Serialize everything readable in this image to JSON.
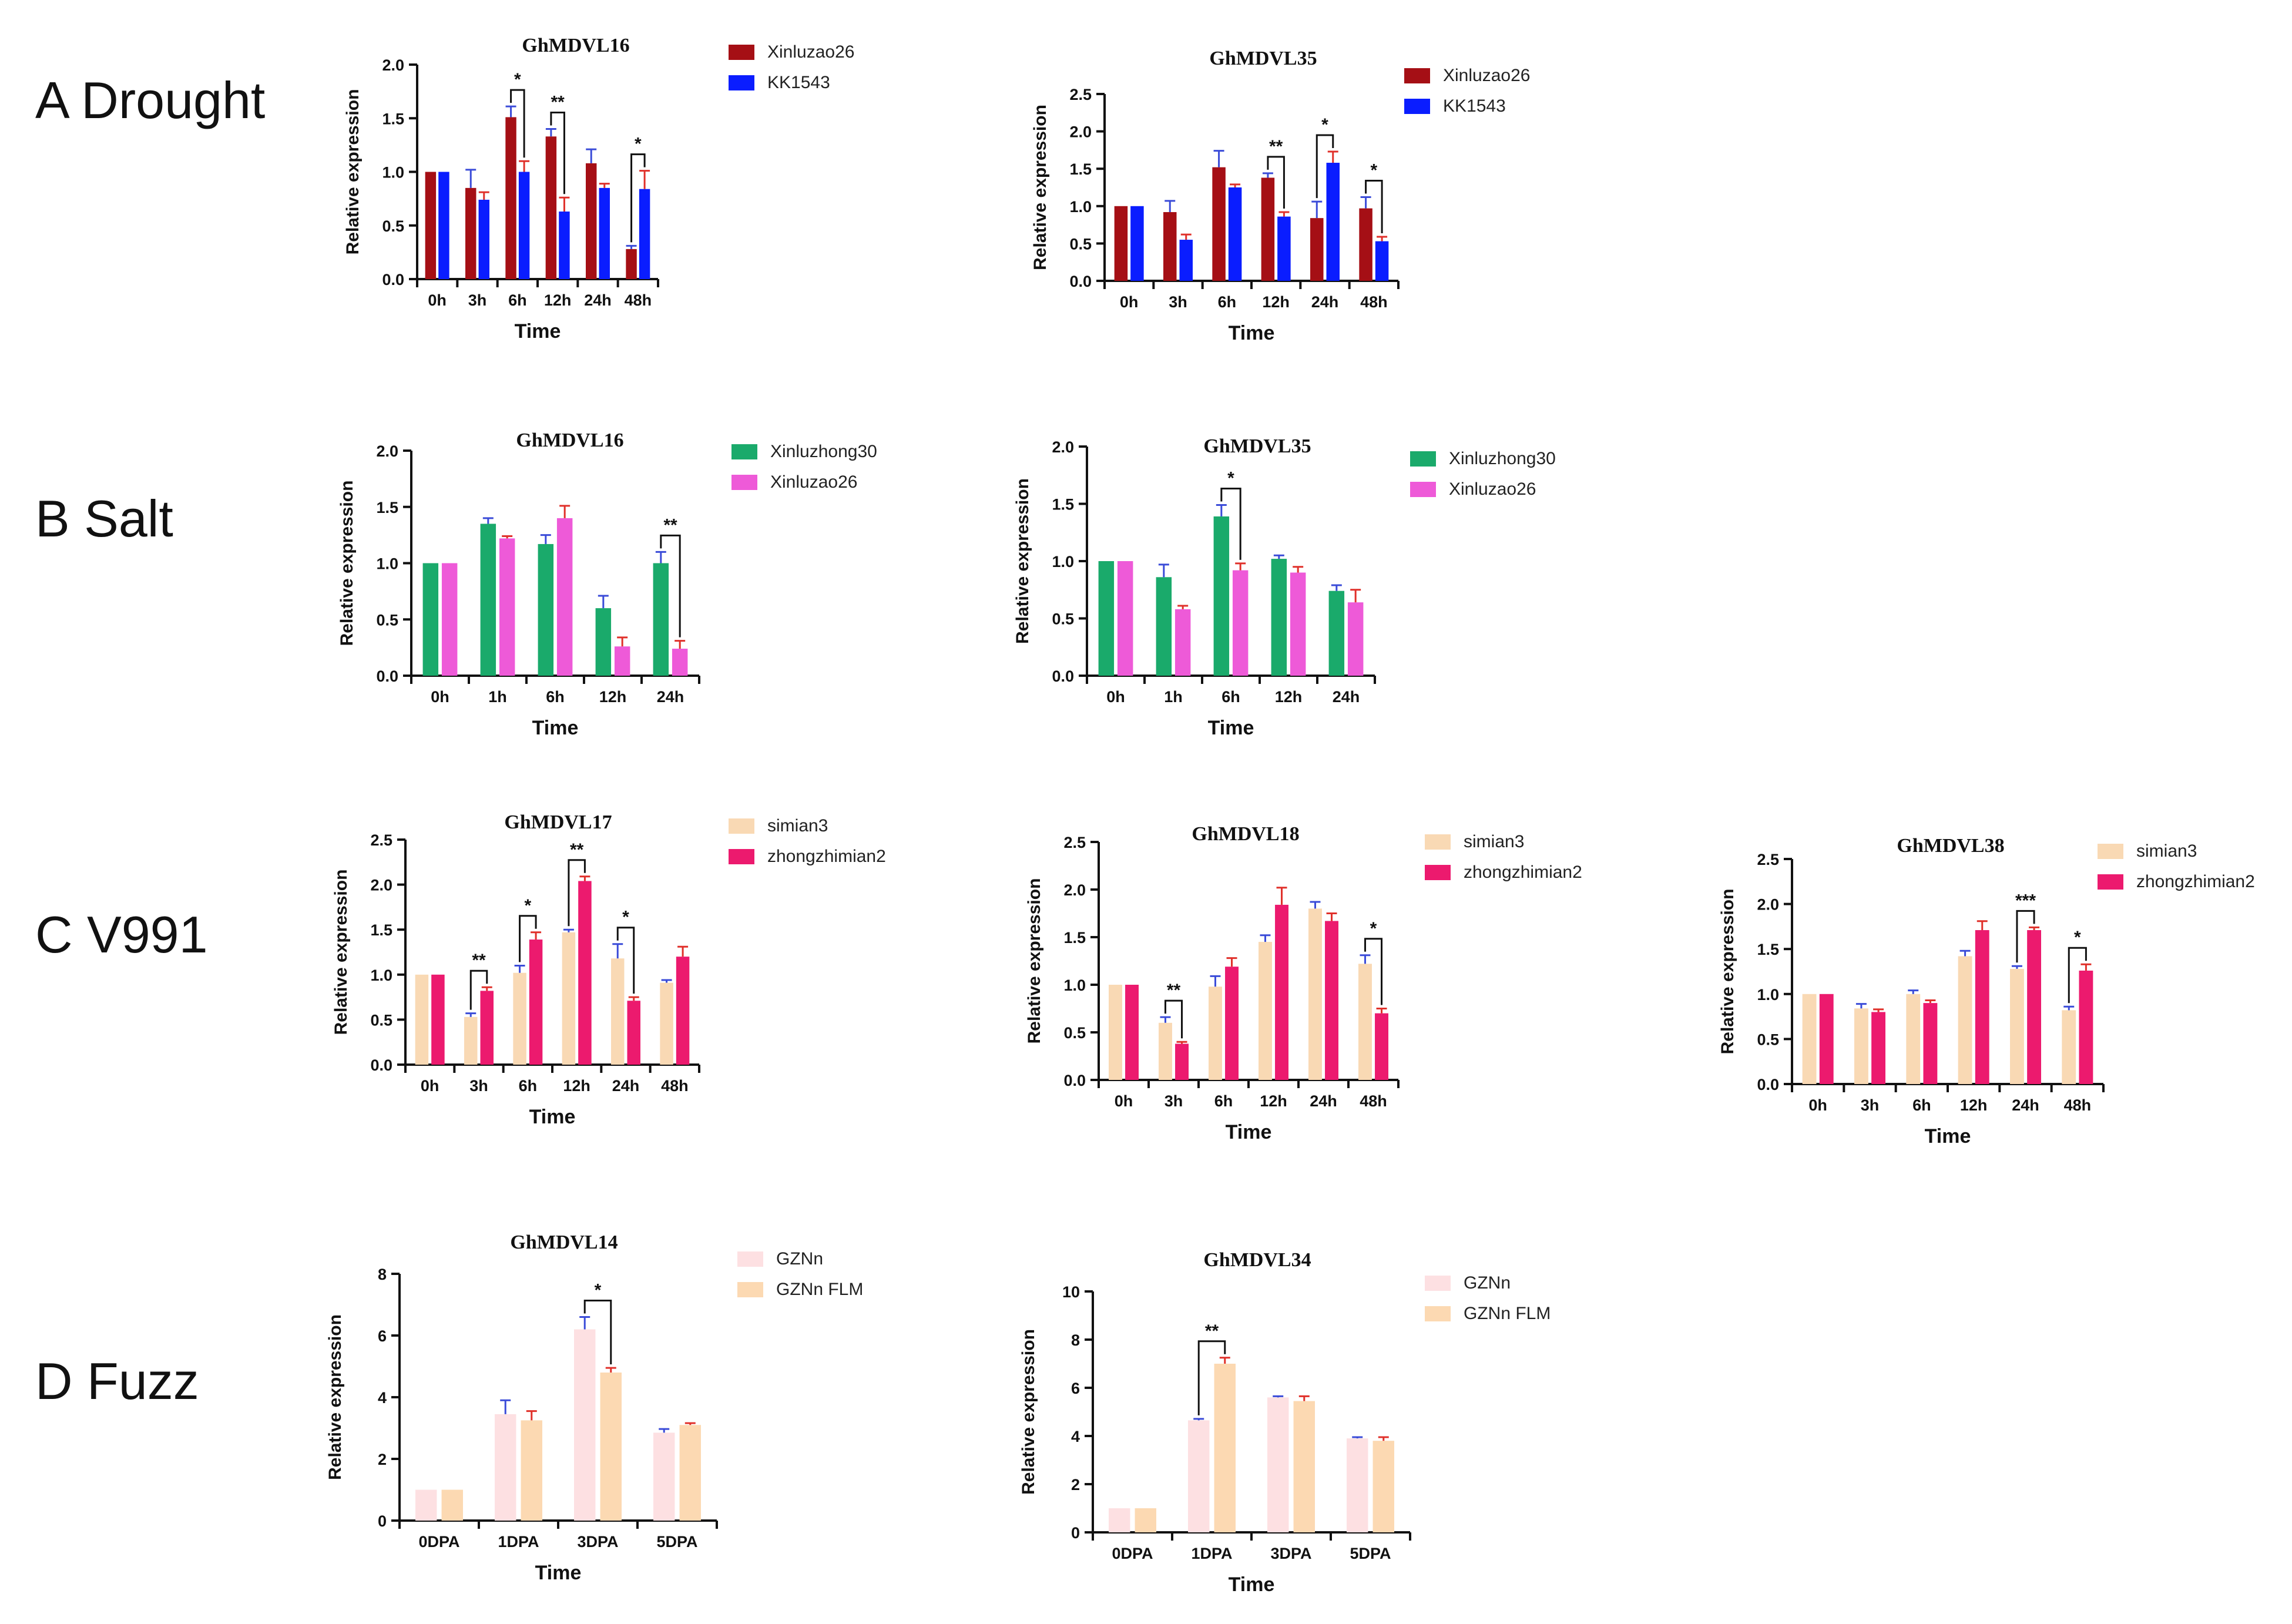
{
  "row_labels": [
    "A  Drought",
    "B  Salt",
    "C  V991",
    "D  Fuzz"
  ],
  "chart_data": [
    {
      "id": "A1",
      "type": "bar",
      "title": "GhMDVL16",
      "xlabel": "Time",
      "ylabel": "Relative expression",
      "ylim": [
        0,
        2.0
      ],
      "yticks": [
        "0.0",
        "0.5",
        "1.0",
        "1.5",
        "2.0"
      ],
      "categories": [
        "0h",
        "3h",
        "6h",
        "12h",
        "24h",
        "48h"
      ],
      "series": [
        {
          "name": "Xinluzao26",
          "color": "#a50f15",
          "values": [
            1.0,
            0.85,
            1.51,
            1.33,
            1.08,
            0.28
          ],
          "errors": [
            0,
            0.17,
            0.1,
            0.07,
            0.13,
            0.03
          ],
          "error_color": "#3a4bd8"
        },
        {
          "name": "KK1543",
          "color": "#0a1dff",
          "values": [
            1.0,
            0.74,
            1.0,
            0.63,
            0.85,
            0.84
          ],
          "errors": [
            0,
            0.07,
            0.1,
            0.13,
            0.04,
            0.17
          ],
          "error_color": "#e0302a"
        }
      ],
      "annotations": [
        {
          "index": 2,
          "label": "*"
        },
        {
          "index": 3,
          "label": "**"
        },
        {
          "index": 5,
          "label": "*"
        }
      ]
    },
    {
      "id": "A2",
      "type": "bar",
      "title": "GhMDVL35",
      "xlabel": "Time",
      "ylabel": "Relative expression",
      "ylim": [
        0,
        2.5
      ],
      "yticks": [
        "0.0",
        "0.5",
        "1.0",
        "1.5",
        "2.0",
        "2.5"
      ],
      "categories": [
        "0h",
        "3h",
        "6h",
        "12h",
        "24h",
        "48h"
      ],
      "series": [
        {
          "name": "Xinluzao26",
          "color": "#a50f15",
          "values": [
            1.0,
            0.92,
            1.52,
            1.38,
            0.84,
            0.97
          ],
          "errors": [
            0,
            0.15,
            0.22,
            0.06,
            0.22,
            0.15
          ],
          "error_color": "#3a4bd8"
        },
        {
          "name": "KK1543",
          "color": "#0a1dff",
          "values": [
            1.0,
            0.55,
            1.25,
            0.86,
            1.58,
            0.53
          ],
          "errors": [
            0,
            0.07,
            0.04,
            0.06,
            0.15,
            0.06
          ],
          "error_color": "#e0302a"
        }
      ],
      "annotations": [
        {
          "index": 3,
          "label": "**"
        },
        {
          "index": 4,
          "label": "*"
        },
        {
          "index": 5,
          "label": "*"
        }
      ]
    },
    {
      "id": "B1",
      "type": "bar",
      "title": "GhMDVL16",
      "xlabel": "Time",
      "ylabel": "Relative expression",
      "ylim": [
        0,
        2.0
      ],
      "yticks": [
        "0.0",
        "0.5",
        "1.0",
        "1.5",
        "2.0"
      ],
      "categories": [
        "0h",
        "1h",
        "6h",
        "12h",
        "24h"
      ],
      "series": [
        {
          "name": "Xinluzhong30",
          "color": "#1aaa6b",
          "values": [
            1.0,
            1.35,
            1.17,
            0.6,
            1.0
          ],
          "errors": [
            0,
            0.05,
            0.08,
            0.11,
            0.1
          ],
          "error_color": "#3a4bd8"
        },
        {
          "name": "Xinluzao26",
          "color": "#ee5ad8",
          "values": [
            1.0,
            1.22,
            1.4,
            0.26,
            0.24
          ],
          "errors": [
            0,
            0.02,
            0.11,
            0.08,
            0.07
          ],
          "error_color": "#e0302a"
        }
      ],
      "annotations": [
        {
          "index": 4,
          "label": "**"
        }
      ]
    },
    {
      "id": "B2",
      "type": "bar",
      "title": "GhMDVL35",
      "xlabel": "Time",
      "ylabel": "Relative expression",
      "ylim": [
        0,
        2.0
      ],
      "yticks": [
        "0.0",
        "0.5",
        "1.0",
        "1.5",
        "2.0"
      ],
      "categories": [
        "0h",
        "1h",
        "6h",
        "12h",
        "24h"
      ],
      "series": [
        {
          "name": "Xinluzhong30",
          "color": "#1aaa6b",
          "values": [
            1.0,
            0.86,
            1.39,
            1.02,
            0.74
          ],
          "errors": [
            0,
            0.11,
            0.1,
            0.03,
            0.05
          ],
          "error_color": "#3a4bd8"
        },
        {
          "name": "Xinluzao26",
          "color": "#ee5ad8",
          "values": [
            1.0,
            0.58,
            0.92,
            0.9,
            0.64
          ],
          "errors": [
            0,
            0.03,
            0.06,
            0.05,
            0.11
          ],
          "error_color": "#e0302a"
        }
      ],
      "annotations": [
        {
          "index": 2,
          "label": "*"
        }
      ]
    },
    {
      "id": "C1",
      "type": "bar",
      "title": "GhMDVL17",
      "xlabel": "Time",
      "ylabel": "Relative expression",
      "ylim": [
        0,
        2.5
      ],
      "yticks": [
        "0.0",
        "0.5",
        "1.0",
        "1.5",
        "2.0",
        "2.5"
      ],
      "categories": [
        "0h",
        "3h",
        "6h",
        "12h",
        "24h",
        "48h"
      ],
      "series": [
        {
          "name": "simian3",
          "color": "#f9d9b4",
          "values": [
            1.0,
            0.53,
            1.02,
            1.47,
            1.18,
            0.91
          ],
          "errors": [
            0,
            0.04,
            0.08,
            0.03,
            0.16,
            0.03
          ],
          "error_color": "#3a4bd8"
        },
        {
          "name": "zhongzhimian2",
          "color": "#ec1a6e",
          "values": [
            1.0,
            0.82,
            1.39,
            2.04,
            0.71,
            1.2
          ],
          "errors": [
            0,
            0.04,
            0.08,
            0.05,
            0.04,
            0.11
          ],
          "error_color": "#e0302a"
        }
      ],
      "annotations": [
        {
          "index": 1,
          "label": "**"
        },
        {
          "index": 2,
          "label": "*"
        },
        {
          "index": 3,
          "label": "**"
        },
        {
          "index": 4,
          "label": "*"
        }
      ]
    },
    {
      "id": "C2",
      "type": "bar",
      "title": "GhMDVL18",
      "xlabel": "Time",
      "ylabel": "Relative expression",
      "ylim": [
        0,
        2.5
      ],
      "yticks": [
        "0.0",
        "0.5",
        "1.0",
        "1.5",
        "2.0",
        "2.5"
      ],
      "categories": [
        "0h",
        "3h",
        "6h",
        "12h",
        "24h",
        "48h"
      ],
      "series": [
        {
          "name": "simian3",
          "color": "#f9d9b4",
          "values": [
            1.0,
            0.6,
            0.98,
            1.45,
            1.8,
            1.22
          ],
          "errors": [
            0,
            0.06,
            0.11,
            0.07,
            0.07,
            0.09
          ],
          "error_color": "#3a4bd8"
        },
        {
          "name": "zhongzhimian2",
          "color": "#ec1a6e",
          "values": [
            1.0,
            0.38,
            1.19,
            1.84,
            1.67,
            0.7
          ],
          "errors": [
            0,
            0.02,
            0.09,
            0.18,
            0.08,
            0.05
          ],
          "error_color": "#e0302a"
        }
      ],
      "annotations": [
        {
          "index": 1,
          "label": "**"
        },
        {
          "index": 5,
          "label": "*"
        }
      ]
    },
    {
      "id": "C3",
      "type": "bar",
      "title": "GhMDVL38",
      "xlabel": "Time",
      "ylabel": "Relative expression",
      "ylim": [
        0,
        2.5
      ],
      "yticks": [
        "0.0",
        "0.5",
        "1.0",
        "1.5",
        "2.0",
        "2.5"
      ],
      "categories": [
        "0h",
        "3h",
        "6h",
        "12h",
        "24h",
        "48h"
      ],
      "series": [
        {
          "name": "simian3",
          "color": "#f9d9b4",
          "values": [
            1.0,
            0.84,
            1.0,
            1.42,
            1.28,
            0.82
          ],
          "errors": [
            0,
            0.05,
            0.04,
            0.06,
            0.03,
            0.04
          ],
          "error_color": "#3a4bd8"
        },
        {
          "name": "zhongzhimian2",
          "color": "#ec1a6e",
          "values": [
            1.0,
            0.8,
            0.9,
            1.71,
            1.71,
            1.26
          ],
          "errors": [
            0,
            0.03,
            0.03,
            0.1,
            0.03,
            0.07
          ],
          "error_color": "#e0302a"
        }
      ],
      "annotations": [
        {
          "index": 4,
          "label": "***"
        },
        {
          "index": 5,
          "label": "*"
        }
      ]
    },
    {
      "id": "D1",
      "type": "bar",
      "title": "GhMDVL14",
      "xlabel": "Time",
      "ylabel": "Relative expression",
      "ylim": [
        0,
        8
      ],
      "yticks": [
        "0",
        "2",
        "4",
        "6",
        "8"
      ],
      "categories": [
        "0DPA",
        "1DPA",
        "3DPA",
        "5DPA"
      ],
      "series": [
        {
          "name": "GZNn",
          "color": "#fde0e2",
          "values": [
            1.0,
            3.45,
            6.2,
            2.85
          ],
          "errors": [
            0,
            0.45,
            0.4,
            0.12
          ],
          "error_color": "#3a4bd8"
        },
        {
          "name": "GZNn FLM",
          "color": "#fcd9b2",
          "values": [
            1.0,
            3.25,
            4.8,
            3.1
          ],
          "errors": [
            0,
            0.3,
            0.15,
            0.06
          ],
          "error_color": "#e0302a"
        }
      ],
      "annotations": [
        {
          "index": 2,
          "label": "*"
        }
      ]
    },
    {
      "id": "D2",
      "type": "bar",
      "title": "GhMDVL34",
      "xlabel": "Time",
      "ylabel": "Relative expression",
      "ylim": [
        0,
        10
      ],
      "yticks": [
        "0",
        "2",
        "4",
        "6",
        "8",
        "10"
      ],
      "categories": [
        "0DPA",
        "1DPA",
        "3DPA",
        "5DPA"
      ],
      "series": [
        {
          "name": "GZNn",
          "color": "#fde0e2",
          "values": [
            1.0,
            4.65,
            5.6,
            3.9
          ],
          "errors": [
            0,
            0.06,
            0.05,
            0.05
          ],
          "error_color": "#3a4bd8"
        },
        {
          "name": "GZNn FLM",
          "color": "#fcd9b2",
          "values": [
            1.0,
            7.0,
            5.45,
            3.8
          ],
          "errors": [
            0,
            0.25,
            0.2,
            0.15
          ],
          "error_color": "#e0302a"
        }
      ],
      "annotations": [
        {
          "index": 1,
          "label": "**"
        }
      ]
    }
  ]
}
